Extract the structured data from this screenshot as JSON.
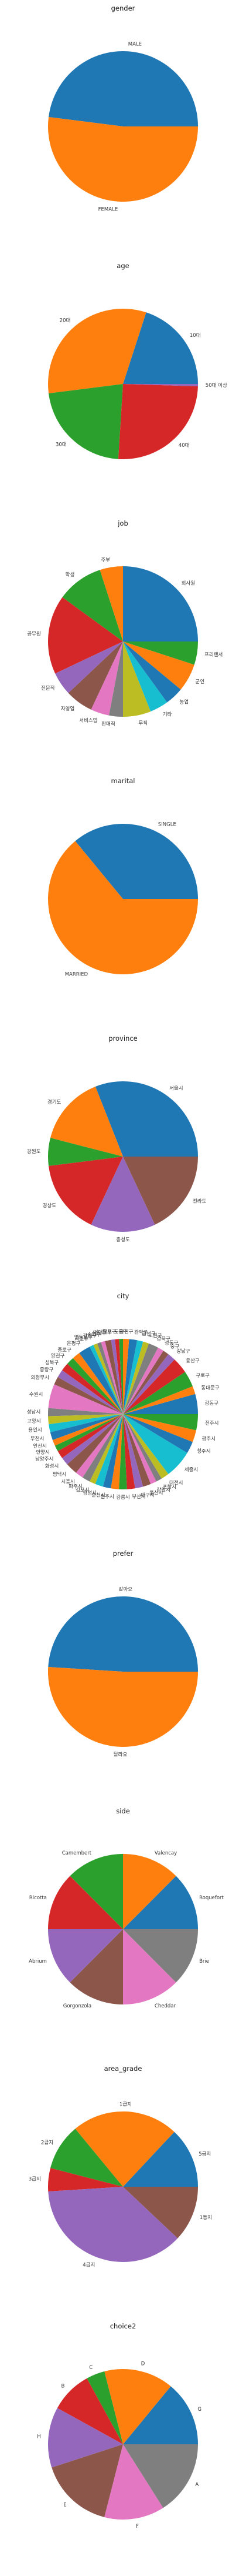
{
  "chart_data": [
    {
      "type": "pie",
      "title": "gender",
      "categories": [
        "MALE",
        "FEMALE"
      ],
      "values": [
        48,
        52
      ]
    },
    {
      "type": "pie",
      "title": "age",
      "categories": [
        "10대",
        "20대",
        "30대",
        "40대",
        "50대 이상"
      ],
      "values": [
        20,
        32,
        22,
        25.5,
        0.5
      ]
    },
    {
      "type": "pie",
      "title": "job",
      "categories": [
        "회사원",
        "주부",
        "학생",
        "공무원",
        "전문직",
        "자영업",
        "서비스업",
        "판매직",
        "무직",
        "기타",
        "농업",
        "군인",
        "프리랜서"
      ],
      "values": [
        25,
        5,
        10,
        17,
        5,
        6,
        4,
        3,
        6,
        4,
        4,
        6,
        5
      ]
    },
    {
      "type": "pie",
      "title": "marital",
      "categories": [
        "SINGLE",
        "MARRIED"
      ],
      "values": [
        36,
        64
      ]
    },
    {
      "type": "pie",
      "title": "province",
      "categories": [
        "서울시",
        "경기도",
        "강원도",
        "경상도",
        "충청도",
        "전라도"
      ],
      "values": [
        31,
        15,
        6,
        16,
        14,
        18
      ]
    },
    {
      "type": "pie",
      "title": "city",
      "categories": [
        "강동구",
        "동대문구",
        "구로구",
        "용산구",
        "강남구",
        "중구",
        "성동구",
        "강북구",
        "노원구",
        "금천구",
        "관악구",
        "광진구",
        "도봉구",
        "마포구",
        "서대문구",
        "동작구",
        "송파구",
        "강서구",
        "영등포구",
        "서초구",
        "은평구",
        "종로구",
        "양천구",
        "성북구",
        "중랑구",
        "의정부시",
        "수원시",
        "성남시",
        "고양시",
        "용인시",
        "부천시",
        "안산시",
        "안양시",
        "남양주시",
        "화성시",
        "평택시",
        "시흥시",
        "파주시",
        "김포시",
        "광명시",
        "춘천시",
        "원주시",
        "강릉시",
        "부산시",
        "대구시",
        "울산시",
        "창원시",
        "포항시",
        "대전시",
        "세종시",
        "청주시",
        "광주시",
        "전주시"
      ],
      "values": [
        5,
        2,
        4,
        4,
        2,
        1.5,
        1.5,
        2.5,
        1.5,
        1.5,
        2,
        1.5,
        1,
        1,
        1,
        1.5,
        1,
        1,
        1,
        1,
        3,
        2,
        2,
        2,
        2,
        2,
        6,
        2,
        2,
        2,
        2,
        1.5,
        1.5,
        2,
        2,
        3,
        2,
        2,
        1.5,
        2,
        2,
        2,
        2,
        2,
        2,
        2,
        1.5,
        1.5,
        2,
        7,
        3,
        3,
        4
      ]
    },
    {
      "type": "pie",
      "title": "prefer",
      "categories": [
        "같아요",
        "달라요"
      ],
      "values": [
        49,
        51
      ]
    },
    {
      "type": "pie",
      "title": "side",
      "categories": [
        "Roquefort",
        "Valencay",
        "Camembert",
        "Ricotta",
        "Abrium",
        "Gorgonzola",
        "Cheddar",
        "Brie"
      ],
      "values": [
        12.5,
        12.5,
        12.5,
        12.5,
        12.5,
        12.5,
        12.5,
        12.5
      ]
    },
    {
      "type": "pie",
      "title": "area_grade",
      "categories": [
        "5급지",
        "1급지",
        "2급지",
        "3급지",
        "4급지",
        "1등지"
      ],
      "values": [
        13,
        23,
        10,
        5,
        37,
        12
      ]
    },
    {
      "type": "pie",
      "title": "choice2",
      "categories": [
        "G",
        "D",
        "C",
        "B",
        "H",
        "E",
        "F",
        "A"
      ],
      "values": [
        14,
        15,
        4,
        9,
        13,
        16,
        13,
        16
      ]
    }
  ],
  "colors": [
    "#1f77b4",
    "#ff7f0e",
    "#2ca02c",
    "#d62728",
    "#9467bd",
    "#8c564b",
    "#e377c2",
    "#7f7f7f",
    "#bcbd22",
    "#17becf"
  ]
}
